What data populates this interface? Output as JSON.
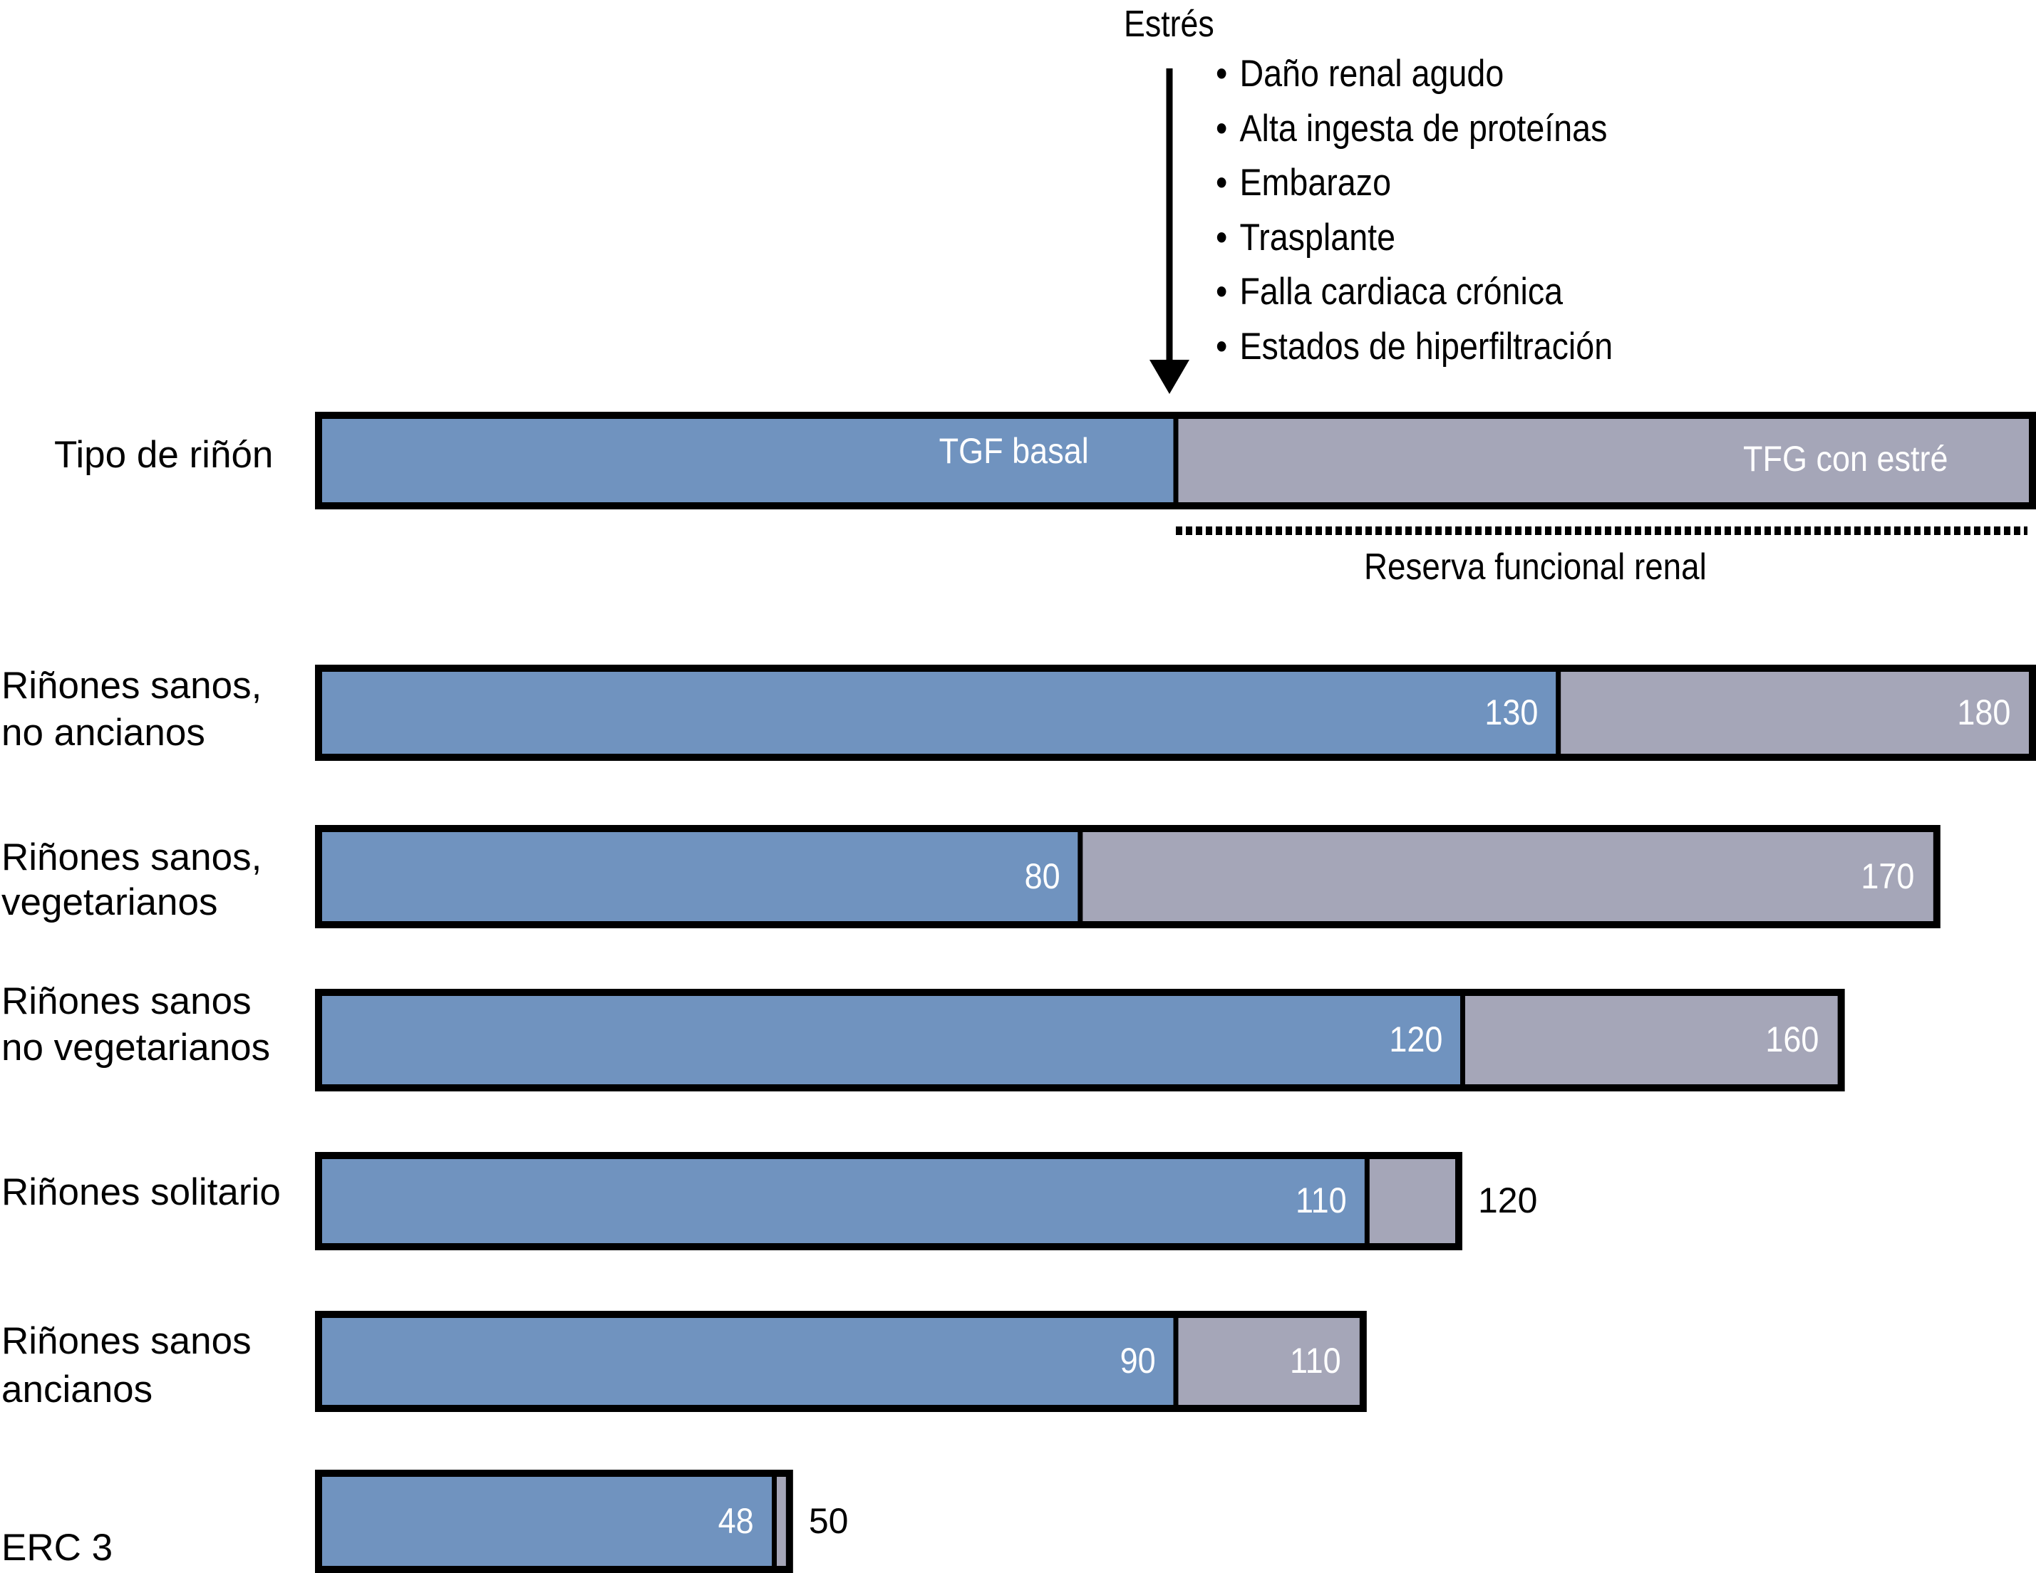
{
  "chart_data": {
    "type": "bar",
    "orientation": "horizontal",
    "stacked": true,
    "title": "",
    "xlabel": "",
    "ylabel": "Tipo de riñón",
    "xlim": [
      0,
      180
    ],
    "grid": false,
    "legend": {
      "placement": "top",
      "row_label": "Tipo de riñón",
      "entries": [
        {
          "name": "TGF basal",
          "color": "#7093BF"
        },
        {
          "name": "TFG con estré",
          "color": "#A5A6B8"
        }
      ],
      "reserve_label": "Reserva funcional renal",
      "basal_marker_value": 90
    },
    "categories": [
      [
        "Riñones sanos,",
        "no ancianos"
      ],
      [
        "Riñones sanos,",
        "vegetarianos"
      ],
      [
        "Riñones sanos",
        "no vegetarianos"
      ],
      [
        "Riñones solitario"
      ],
      [
        "Riñones sanos",
        "ancianos"
      ],
      [
        "ERC 3"
      ]
    ],
    "series": [
      {
        "name": "TGF basal",
        "values": [
          130,
          80,
          120,
          110,
          90,
          48
        ]
      },
      {
        "name": "TFG con estrés",
        "values": [
          180,
          170,
          160,
          120,
          110,
          50
        ]
      }
    ],
    "label_outside": [
      false,
      false,
      false,
      true,
      false,
      true
    ],
    "annotation": {
      "title": "Estrés",
      "items": [
        "Daño renal agudo",
        "Alta ingesta de proteínas",
        "Embarazo",
        "Trasplante",
        "Falla cardiaca crónica",
        "Estados de hiperfiltración"
      ]
    }
  },
  "colors": {
    "basal": "#7093BF",
    "stress": "#A5A6B8",
    "outline": "#000000",
    "label_on_bar": "#FFFFFF"
  },
  "bullet": "•"
}
